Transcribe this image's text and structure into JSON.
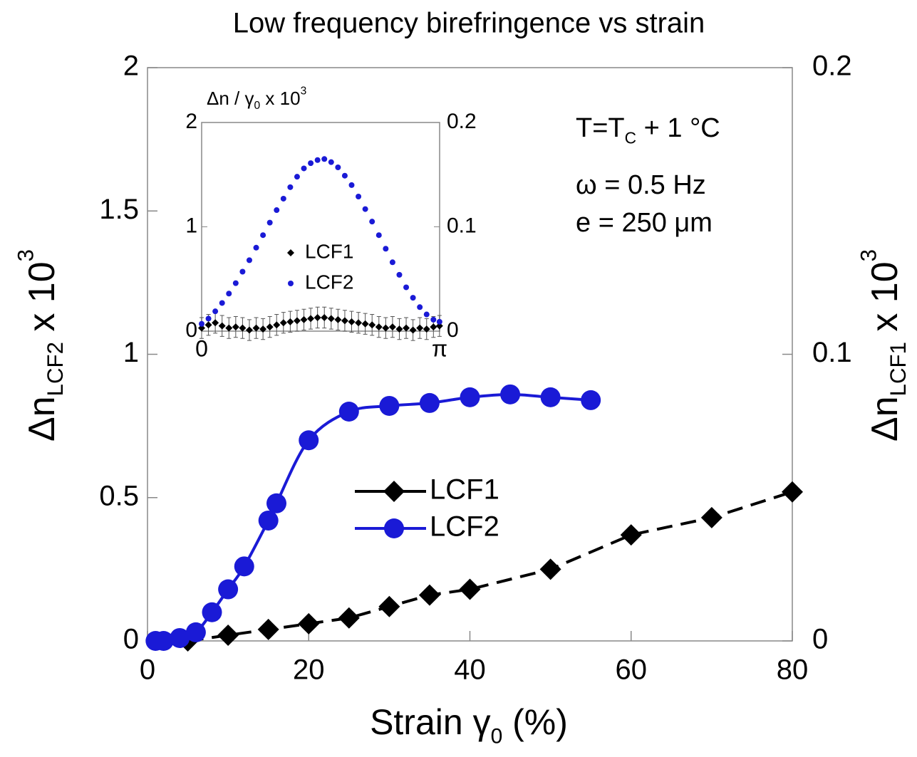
{
  "chart_data": [
    {
      "type": "line",
      "title": "Low frequency birefringence vs strain",
      "xlabel": [
        {
          "text": "Strain γ"
        },
        {
          "text": "0",
          "script": "sub"
        },
        {
          "text": " (%)"
        }
      ],
      "ylabel": [
        {
          "text": "Δn"
        },
        {
          "text": "LCF2",
          "script": "sub"
        },
        {
          "text": " x 10"
        },
        {
          "text": "3",
          "script": "sup"
        }
      ],
      "y2label": [
        {
          "text": "Δn"
        },
        {
          "text": "LCF1",
          "script": "sub"
        },
        {
          "text": " x 10"
        },
        {
          "text": "3",
          "script": "sup"
        }
      ],
      "ylabel_color": "#1a1ad6",
      "annotations": [
        [
          {
            "text": "T=T"
          },
          {
            "text": "C",
            "script": "sub"
          },
          {
            "text": " + 1 °C"
          }
        ],
        [
          {
            "text": "ω = 0.5 Hz"
          }
        ],
        [
          {
            "text": "e = 250 μm"
          }
        ]
      ],
      "xlim": [
        0,
        80
      ],
      "xticks": [
        0,
        20,
        40,
        60,
        80
      ],
      "ylim": [
        0,
        2
      ],
      "yticks": [
        0,
        0.5,
        1,
        1.5,
        2
      ],
      "y2lim": [
        0,
        0.2
      ],
      "y2ticks": [
        0,
        0.1,
        0.2
      ],
      "series": [
        {
          "name": "LCF1",
          "color": "#000000",
          "axis": "y2",
          "marker": "diamond",
          "dash": true,
          "x": [
            5,
            10,
            15,
            20,
            25,
            30,
            35,
            40,
            50,
            60,
            70,
            80
          ],
          "values": [
            0,
            0.002,
            0.004,
            0.006,
            0.008,
            0.012,
            0.016,
            0.018,
            0.025,
            0.037,
            0.043,
            0.052
          ]
        },
        {
          "name": "LCF2",
          "color": "#1a1ad6",
          "marker": "circle",
          "dash": false,
          "x": [
            1,
            2,
            4,
            6,
            8,
            10,
            12,
            15,
            16,
            20,
            25,
            30,
            35,
            40,
            45,
            50,
            55
          ],
          "values": [
            0,
            0,
            0.01,
            0.03,
            0.1,
            0.18,
            0.26,
            0.42,
            0.48,
            0.7,
            0.8,
            0.82,
            0.83,
            0.85,
            0.86,
            0.85,
            0.84
          ]
        }
      ]
    },
    {
      "type": "scatter",
      "title": [
        {
          "text": "Δn / γ"
        },
        {
          "text": "0",
          "script": "sub"
        },
        {
          "text": " x 10"
        },
        {
          "text": "3",
          "script": "sup"
        }
      ],
      "xlim": [
        0,
        3.1416
      ],
      "xticks": [
        0,
        {
          "value": 3.1416,
          "label": "π"
        }
      ],
      "ylim": [
        0,
        2
      ],
      "yticks": [
        0,
        1,
        2
      ],
      "ytick_color": "#1a1ad6",
      "y2lim": [
        0,
        0.2
      ],
      "y2ticks": [
        0,
        0.1,
        0.2
      ],
      "x": [
        0,
        0.09,
        0.18,
        0.27,
        0.36,
        0.45,
        0.54,
        0.63,
        0.72,
        0.81,
        0.9,
        0.99,
        1.08,
        1.17,
        1.26,
        1.35,
        1.44,
        1.53,
        1.62,
        1.71,
        1.8,
        1.89,
        1.98,
        2.07,
        2.16,
        2.25,
        2.34,
        2.43,
        2.52,
        2.61,
        2.7,
        2.79,
        2.88,
        2.97,
        3.06,
        3.14
      ],
      "series": [
        {
          "name": "LCF1",
          "color": "#000000",
          "axis": "y2",
          "marker": "diamond",
          "values": [
            0.003,
            0.006,
            0.008,
            0.005,
            0.003,
            0.004,
            0.003,
            0.001,
            0.003,
            0.002,
            0.004,
            0.006,
            0.008,
            0.009,
            0.01,
            0.011,
            0.012,
            0.013,
            0.013,
            0.012,
            0.011,
            0.01,
            0.009,
            0.008,
            0.007,
            0.006,
            0.004,
            0.003,
            0.004,
            0.002,
            0.003,
            0.001,
            0.003,
            0.002,
            0.004,
            0.005
          ],
          "errors": [
            0.01,
            0.01,
            0.01,
            0.01,
            0.01,
            0.01,
            0.01,
            0.01,
            0.01,
            0.01,
            0.01,
            0.01,
            0.01,
            0.01,
            0.01,
            0.01,
            0.01,
            0.01,
            0.01,
            0.01,
            0.01,
            0.01,
            0.01,
            0.01,
            0.01,
            0.01,
            0.01,
            0.01,
            0.01,
            0.01,
            0.01,
            0.01,
            0.01,
            0.01,
            0.01,
            0.01
          ]
        },
        {
          "name": "LCF2",
          "color": "#1a1ad6",
          "marker": "circle",
          "values": [
            0.07,
            0.12,
            0.19,
            0.27,
            0.36,
            0.46,
            0.57,
            0.68,
            0.8,
            0.92,
            1.04,
            1.16,
            1.27,
            1.38,
            1.48,
            1.56,
            1.61,
            1.64,
            1.65,
            1.62,
            1.57,
            1.49,
            1.4,
            1.29,
            1.17,
            1.05,
            0.92,
            0.79,
            0.66,
            0.54,
            0.42,
            0.32,
            0.23,
            0.16,
            0.11,
            0.09
          ]
        }
      ]
    }
  ]
}
